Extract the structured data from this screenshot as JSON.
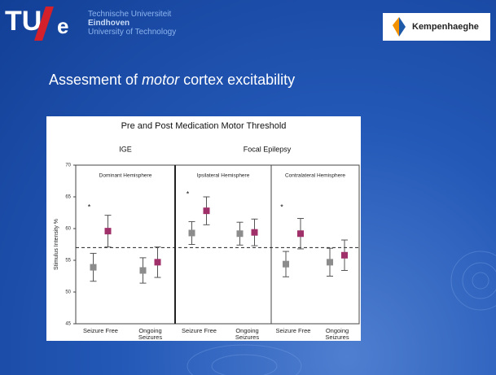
{
  "header": {
    "logo": [
      "TU",
      "e"
    ],
    "university": [
      "Technische Universiteit",
      "Eindhoven",
      "University of Technology"
    ],
    "partner": "Kempenhaeghe"
  },
  "slide_title": [
    "Assesment of",
    "motor",
    "cortex excitability"
  ],
  "chart_data": {
    "type": "errorbar",
    "title": "Pre and Post Medication Motor Threshold",
    "groups": [
      {
        "label": "IGE",
        "panels": [
          0
        ]
      },
      {
        "label": "Focal Epilepsy",
        "panels": [
          1,
          2
        ]
      }
    ],
    "panels": [
      {
        "title": "Dominant Hemisphere",
        "categories": [
          0,
          1
        ]
      },
      {
        "title": "Ipsilateral Hemisphere",
        "categories": [
          2,
          3
        ]
      },
      {
        "title": "Contralateral Hemisphere",
        "categories": [
          4,
          5
        ]
      }
    ],
    "categories": [
      "Seizure Free",
      "Ongoing Seizures",
      "Seizure Free",
      "Ongoing Seizures",
      "Seizure Free",
      "Ongoing Seizures"
    ],
    "series": [
      {
        "color": "#8c8c8c",
        "values": [
          53.9,
          53.4,
          59.3,
          59.2,
          54.4,
          54.7
        ],
        "errors": [
          2.2,
          2.0,
          1.8,
          1.8,
          2.0,
          2.2
        ]
      },
      {
        "color": "#a0306a",
        "values": [
          59.6,
          54.7,
          62.8,
          59.4,
          59.2,
          55.8
        ],
        "errors": [
          2.5,
          2.4,
          2.2,
          2.1,
          2.4,
          2.4
        ]
      }
    ],
    "ylabel": "Stimulus Intensity %",
    "ylim": [
      45,
      70
    ],
    "yticks": [
      45,
      50,
      55,
      60,
      65,
      70
    ],
    "reference_line": 57,
    "annotations": [
      {
        "text": "*",
        "category": 0,
        "y": 63.3
      },
      {
        "text": "*",
        "category": 2,
        "y": 65.4
      },
      {
        "text": "*",
        "category": 4,
        "y": 63.3
      }
    ]
  }
}
